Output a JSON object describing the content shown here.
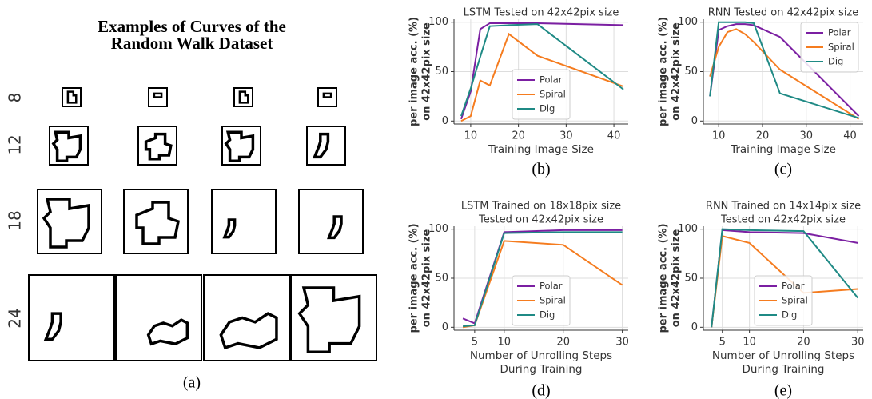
{
  "figure_a": {
    "title": [
      "Examples of Curves of the",
      "Random Walk Dataset"
    ],
    "row_labels": [
      "8",
      "12",
      "18",
      "24"
    ],
    "caption": "(a)"
  },
  "chart_data": [
    {
      "type": "line",
      "title": [
        "LSTM Tested on 42x42pix size"
      ],
      "xlabel": [
        "Training Image Size"
      ],
      "ylabel": [
        "per image acc. (%)",
        "on 42x42pix size"
      ],
      "caption": "(b)",
      "x": [
        8,
        10,
        12,
        14,
        18,
        24,
        42
      ],
      "xlim": [
        6.5,
        43
      ],
      "xticks": [
        10,
        20,
        30,
        40
      ],
      "ylim": [
        -3,
        103
      ],
      "yticks": [
        0,
        50,
        100
      ],
      "grid": true,
      "legend": "lower center",
      "series": [
        {
          "name": "Polar",
          "color": "#7b1fa2",
          "values": [
            2,
            30,
            93,
            99,
            99,
            99,
            97
          ]
        },
        {
          "name": "Spiral",
          "color": "#f57c1f",
          "values": [
            0,
            5,
            41,
            36,
            88,
            66,
            35
          ]
        },
        {
          "name": "Dig",
          "color": "#1f8a85",
          "values": [
            5,
            33,
            65,
            96,
            97,
            98,
            32
          ]
        }
      ]
    },
    {
      "type": "line",
      "title": [
        "RNN Tested on 42x42pix size"
      ],
      "xlabel": [
        "Training Image Size"
      ],
      "ylabel": [
        "per image acc. (%)",
        "on 42x42pix size"
      ],
      "caption": "(c)",
      "x": [
        8,
        10,
        12,
        14,
        16,
        18,
        24,
        42
      ],
      "xlim": [
        6.5,
        43
      ],
      "xticks": [
        10,
        20,
        30,
        40
      ],
      "ylim": [
        -3,
        103
      ],
      "yticks": [
        0,
        50,
        100
      ],
      "grid": true,
      "legend": "upper right",
      "series": [
        {
          "name": "Polar",
          "color": "#7b1fa2",
          "values": [
            25,
            92,
            96,
            98,
            98,
            97,
            85,
            5
          ]
        },
        {
          "name": "Spiral",
          "color": "#f57c1f",
          "values": [
            45,
            75,
            90,
            93,
            88,
            80,
            52,
            2
          ]
        },
        {
          "name": "Dig",
          "color": "#1f8a85",
          "values": [
            25,
            100,
            100,
            100,
            100,
            99,
            28,
            3
          ]
        }
      ]
    },
    {
      "type": "line",
      "title": [
        "LSTM Trained on 18x18pix size",
        "Tested on 42x42pix size"
      ],
      "xlabel": [
        "Number of Unrolling Steps",
        "During Training"
      ],
      "ylabel": [
        "per image acc. (%)",
        "on 42x42pix size"
      ],
      "caption": "(d)",
      "x": [
        3,
        5,
        10,
        20,
        30
      ],
      "xlim": [
        1.5,
        31
      ],
      "xticks": [
        5,
        10,
        20,
        30
      ],
      "ylim": [
        -3,
        103
      ],
      "yticks": [
        0,
        50,
        100
      ],
      "grid": true,
      "legend": "lower center",
      "series": [
        {
          "name": "Polar",
          "color": "#7b1fa2",
          "values": [
            9,
            4,
            97,
            99,
            99
          ]
        },
        {
          "name": "Spiral",
          "color": "#f57c1f",
          "values": [
            0,
            2,
            88,
            84,
            43
          ]
        },
        {
          "name": "Dig",
          "color": "#1f8a85",
          "values": [
            1,
            2,
            96,
            97,
            97
          ]
        }
      ]
    },
    {
      "type": "line",
      "title": [
        "RNN Trained on 14x14pix size",
        "Tested on 42x42pix size"
      ],
      "xlabel": [
        "Number of Unrolling Steps",
        "During Training"
      ],
      "ylabel": [
        "per image acc. (%)",
        "on 42x42pix size"
      ],
      "caption": "(e)",
      "x": [
        3,
        5,
        10,
        20,
        30
      ],
      "xlim": [
        1.5,
        31
      ],
      "xticks": [
        5,
        10,
        20,
        30
      ],
      "ylim": [
        -3,
        103
      ],
      "yticks": [
        0,
        50,
        100
      ],
      "grid": true,
      "legend": "lower center",
      "series": [
        {
          "name": "Polar",
          "color": "#7b1fa2",
          "values": [
            0,
            99,
            97,
            96,
            86
          ]
        },
        {
          "name": "Spiral",
          "color": "#f57c1f",
          "values": [
            0,
            93,
            86,
            35,
            39
          ]
        },
        {
          "name": "Dig",
          "color": "#1f8a85",
          "values": [
            0,
            100,
            99,
            98,
            30
          ]
        }
      ]
    }
  ]
}
